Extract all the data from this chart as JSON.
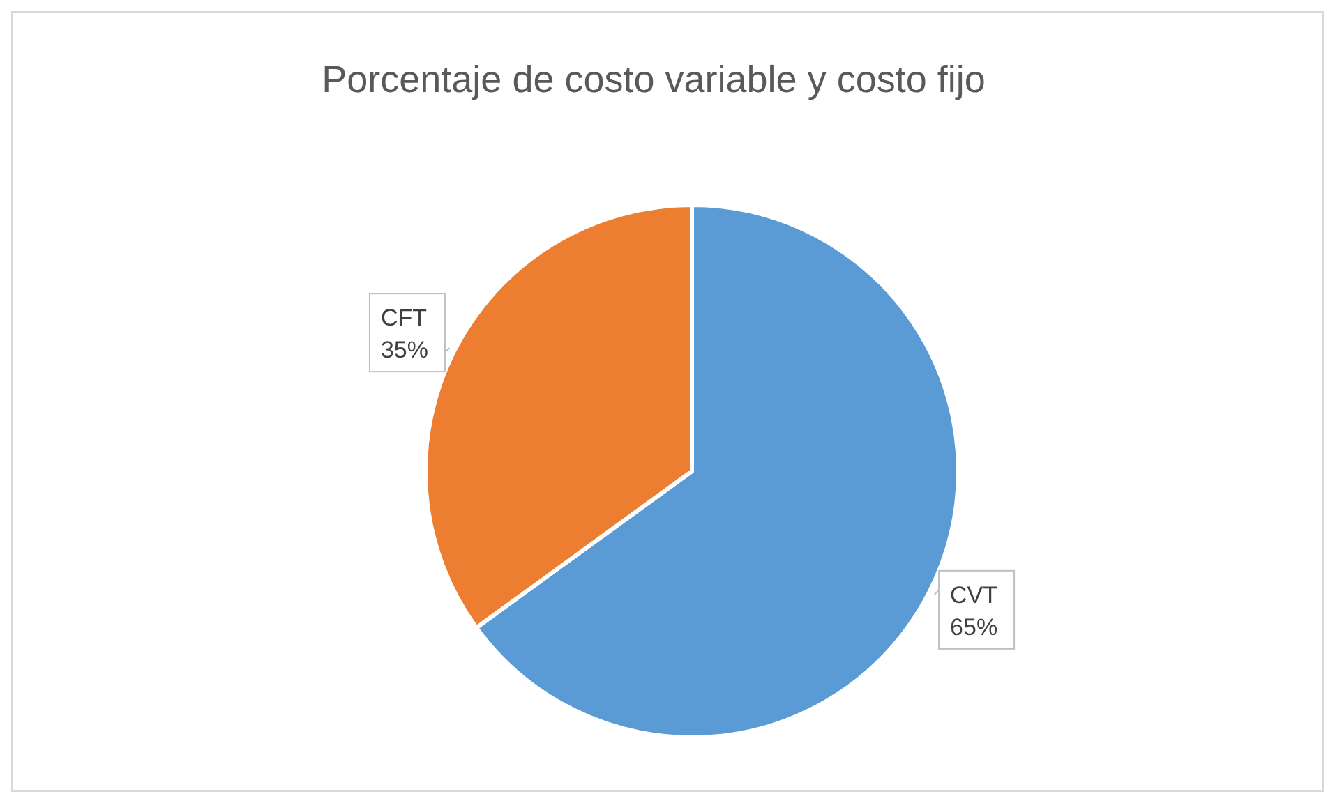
{
  "chart_data": {
    "type": "pie",
    "title": "Porcentaje de costo variable y costo fijo",
    "categories": [
      "CVT",
      "CFT"
    ],
    "values": [
      65,
      35
    ],
    "colors": [
      "#5b9bd5",
      "#ed7d31"
    ],
    "value_labels": [
      "65%",
      "35%"
    ],
    "legend": false
  }
}
